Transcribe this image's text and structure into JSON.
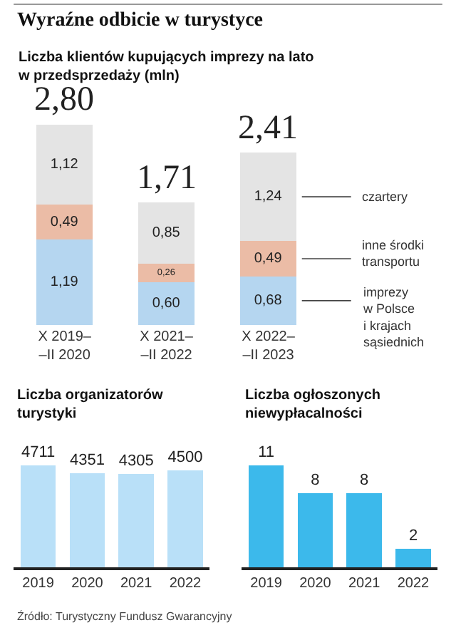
{
  "chart_data": [
    {
      "type": "bar",
      "title": "Wyraźne odbicie w turystyce",
      "subtitle": "Liczba klientów kupujących imprezy na lato\nw przedsprzedaży (mln)",
      "categories": [
        "X 2019–\n–II 2020",
        "X 2021–\n–II 2022",
        "X 2022–\n–II 2023"
      ],
      "stacked": true,
      "series": [
        {
          "name": "imprezy\nw Polsce\ni krajach\nsąsiednich",
          "color": "#b5d6f0",
          "values": [
            1.19,
            0.6,
            0.68
          ],
          "value_labels": [
            "1,19",
            "0,60",
            "0,68"
          ]
        },
        {
          "name": "inne środki\ntransportu",
          "color": "#ebbca6",
          "values": [
            0.49,
            0.26,
            0.49
          ],
          "value_labels": [
            "0,49",
            "0,26",
            "0,49"
          ]
        },
        {
          "name": "czartery",
          "color": "#e4e4e4",
          "values": [
            1.12,
            0.85,
            1.24
          ],
          "value_labels": [
            "1,12",
            "0,85",
            "1,24"
          ]
        }
      ],
      "totals": [
        "2,80",
        "1,71",
        "2,41"
      ]
    },
    {
      "type": "bar",
      "title": "Liczba organizatorów\nturystyki",
      "categories": [
        "2019",
        "2020",
        "2021",
        "2022"
      ],
      "values": [
        4711,
        4351,
        4305,
        4500
      ],
      "color": "#b9e0f8",
      "data_labels": true,
      "tick_labels": "x",
      "annotations": [
        "Źródło: Turystyczny Fundusz Gwarancyjny"
      ]
    },
    {
      "type": "bar",
      "title": "Liczba ogłoszonych\nniewypłacalności",
      "categories": [
        "2019",
        "2020",
        "2021",
        "2022"
      ],
      "values": [
        11,
        8,
        8,
        2
      ],
      "color": "#3cb9eb",
      "data_labels": true,
      "tick_labels": "x"
    }
  ]
}
